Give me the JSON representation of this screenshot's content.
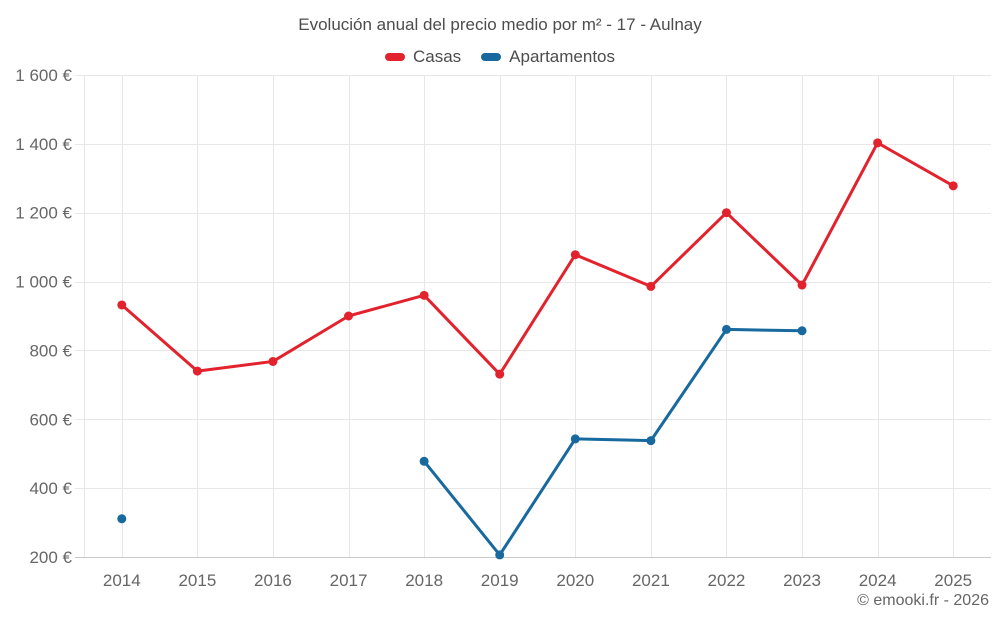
{
  "header": {
    "title": "Evolución anual del precio medio por m² - 17 - Aulnay"
  },
  "legend": {
    "items": [
      {
        "label": "Casas",
        "color": "#e2232d"
      },
      {
        "label": "Apartamentos",
        "color": "#17699e"
      }
    ]
  },
  "footer": {
    "credit": "© emooki.fr - 2026"
  },
  "colors": {
    "background": "#ffffff",
    "grid": "#e7e7e7",
    "axis_line": "#c9c9c9",
    "title_text": "#4d4d4d",
    "axis_text": "#666666",
    "credit_text": "#666666",
    "casas": "#e2232d",
    "apartamentos": "#17699e"
  },
  "chart_data": {
    "type": "line",
    "title": "Evolución anual del precio medio por m² - 17 - Aulnay",
    "xlabel": "",
    "ylabel": "",
    "categories": [
      "2014",
      "2015",
      "2016",
      "2017",
      "2018",
      "2019",
      "2020",
      "2021",
      "2022",
      "2023",
      "2024",
      "2025"
    ],
    "series": [
      {
        "name": "Casas",
        "color": "#e2232d",
        "values": [
          932,
          740,
          768,
          900,
          960,
          731,
          1078,
          986,
          1200,
          990,
          1403,
          1278
        ]
      },
      {
        "name": "Apartamentos",
        "color": "#17699e",
        "values": [
          311,
          null,
          null,
          null,
          478,
          206,
          543,
          538,
          861,
          857,
          null,
          null
        ]
      }
    ],
    "ylim": [
      200,
      1600
    ],
    "yticks": [
      {
        "value": 200,
        "label": "200 €"
      },
      {
        "value": 400,
        "label": "400 €"
      },
      {
        "value": 600,
        "label": "600 €"
      },
      {
        "value": 800,
        "label": "800 €"
      },
      {
        "value": 1000,
        "label": "1 000 €"
      },
      {
        "value": 1200,
        "label": "1 200 €"
      },
      {
        "value": 1400,
        "label": "1 400 €"
      },
      {
        "value": 1600,
        "label": "1 600 €"
      }
    ],
    "grid": true,
    "legend_position": "top",
    "marker_radius": 4.5,
    "line_width": 3
  }
}
